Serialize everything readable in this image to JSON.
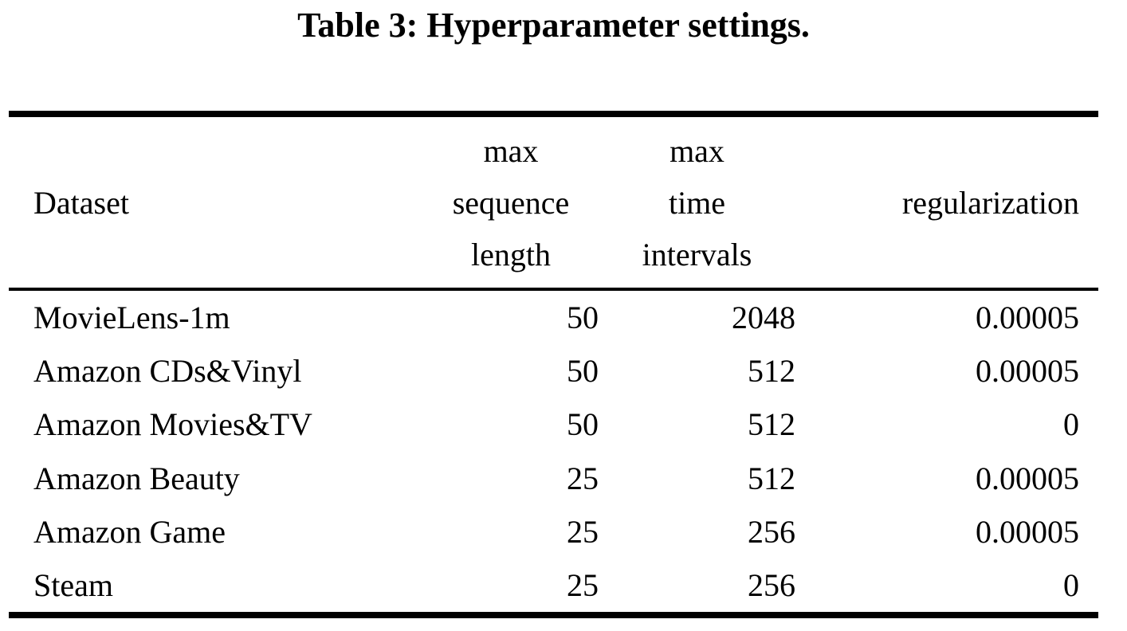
{
  "title": "Table 3: Hyperparameter settings.",
  "table": {
    "header": {
      "dataset": "Dataset",
      "max_sequence_length_lines": [
        "max",
        "sequence",
        "length"
      ],
      "max_time_intervals_lines": [
        "max",
        "time",
        "intervals"
      ],
      "regularization": "regularization"
    },
    "rows": [
      {
        "dataset": "MovieLens-1m",
        "max_sequence_length": "50",
        "max_time_intervals": "2048",
        "regularization": "0.00005"
      },
      {
        "dataset": "Amazon CDs&Vinyl",
        "max_sequence_length": "50",
        "max_time_intervals": "512",
        "regularization": "0.00005"
      },
      {
        "dataset": "Amazon Movies&TV",
        "max_sequence_length": "50",
        "max_time_intervals": "512",
        "regularization": "0"
      },
      {
        "dataset": "Amazon Beauty",
        "max_sequence_length": "25",
        "max_time_intervals": "512",
        "regularization": "0.00005"
      },
      {
        "dataset": "Amazon Game",
        "max_sequence_length": "25",
        "max_time_intervals": "256",
        "regularization": "0.00005"
      },
      {
        "dataset": "Steam",
        "max_sequence_length": "25",
        "max_time_intervals": "256",
        "regularization": "0"
      }
    ],
    "text_color": "#000000",
    "background_color": "#ffffff"
  }
}
